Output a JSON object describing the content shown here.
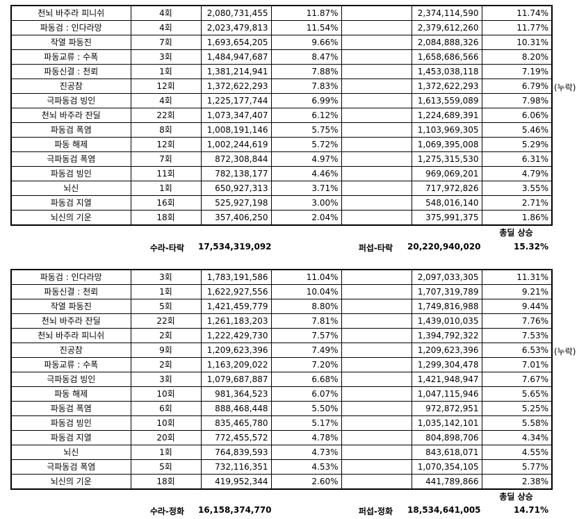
{
  "table1": {
    "rows": [
      {
        "skill": "천뇌 바주라 피니쉬",
        "hits": "4회",
        "dmg_a": "2,080,731,455",
        "pct_a": "11.87%",
        "blank": "",
        "dmg_b": "2,374,114,590",
        "pct_b": "11.74%",
        "note": ""
      },
      {
        "skill": "파동검 : 인다라망",
        "hits": "4회",
        "dmg_a": "2,023,479,813",
        "pct_a": "11.54%",
        "blank": "",
        "dmg_b": "2,379,612,260",
        "pct_b": "11.77%",
        "note": ""
      },
      {
        "skill": "작열 파동진",
        "hits": "7회",
        "dmg_a": "1,693,654,205",
        "pct_a": "9.66%",
        "blank": "",
        "dmg_b": "2,084,888,326",
        "pct_b": "10.31%",
        "note": ""
      },
      {
        "skill": "파동교류 : 수폭",
        "hits": "3회",
        "dmg_a": "1,484,947,687",
        "pct_a": "8.47%",
        "blank": "",
        "dmg_b": "1,658,686,566",
        "pct_b": "8.20%",
        "note": ""
      },
      {
        "skill": "파동신결 : 천뢰",
        "hits": "1회",
        "dmg_a": "1,381,214,941",
        "pct_a": "7.88%",
        "blank": "",
        "dmg_b": "1,453,038,118",
        "pct_b": "7.19%",
        "note": ""
      },
      {
        "skill": "진공참",
        "hits": "12회",
        "dmg_a": "1,372,622,293",
        "pct_a": "7.83%",
        "blank": "",
        "dmg_b": "1,372,622,293",
        "pct_b": "6.79%",
        "note": "(누락)"
      },
      {
        "skill": "극파동검 빙인",
        "hits": "4회",
        "dmg_a": "1,225,177,744",
        "pct_a": "6.99%",
        "blank": "",
        "dmg_b": "1,613,559,089",
        "pct_b": "7.98%",
        "note": ""
      },
      {
        "skill": "천뇌 바주라 잔딜",
        "hits": "22회",
        "dmg_a": "1,073,347,407",
        "pct_a": "6.12%",
        "blank": "",
        "dmg_b": "1,224,689,391",
        "pct_b": "6.06%",
        "note": ""
      },
      {
        "skill": "파동검 폭염",
        "hits": "8회",
        "dmg_a": "1,008,191,146",
        "pct_a": "5.75%",
        "blank": "",
        "dmg_b": "1,103,969,305",
        "pct_b": "5.46%",
        "note": ""
      },
      {
        "skill": "파동 해제",
        "hits": "12회",
        "dmg_a": "1,002,244,619",
        "pct_a": "5.72%",
        "blank": "",
        "dmg_b": "1,069,395,008",
        "pct_b": "5.29%",
        "note": ""
      },
      {
        "skill": "극파동검 폭염",
        "hits": "7회",
        "dmg_a": "872,308,844",
        "pct_a": "4.97%",
        "blank": "",
        "dmg_b": "1,275,315,530",
        "pct_b": "6.31%",
        "note": ""
      },
      {
        "skill": "파동검 빙인",
        "hits": "11회",
        "dmg_a": "782,138,177",
        "pct_a": "4.46%",
        "blank": "",
        "dmg_b": "969,069,201",
        "pct_b": "4.79%",
        "note": ""
      },
      {
        "skill": "뇌신",
        "hits": "1회",
        "dmg_a": "650,927,313",
        "pct_a": "3.71%",
        "blank": "",
        "dmg_b": "717,972,826",
        "pct_b": "3.55%",
        "note": ""
      },
      {
        "skill": "파동검 지열",
        "hits": "16회",
        "dmg_a": "525,927,198",
        "pct_a": "3.00%",
        "blank": "",
        "dmg_b": "548,016,140",
        "pct_b": "2.71%",
        "note": ""
      },
      {
        "skill": "뇌신의 기운",
        "hits": "18회",
        "dmg_a": "357,406,250",
        "pct_a": "2.04%",
        "blank": "",
        "dmg_b": "375,991,375",
        "pct_b": "1.86%",
        "note": ""
      }
    ],
    "summary": {
      "increase_header": "총딜 상승",
      "label_a": "수라-타락",
      "total_a": "17,534,319,092",
      "label_b": "퍼섭-타락",
      "total_b": "20,220,940,020",
      "increase": "15.32%"
    }
  },
  "table2": {
    "rows": [
      {
        "skill": "파동검 : 인다라망",
        "hits": "3회",
        "dmg_a": "1,783,191,586",
        "pct_a": "11.04%",
        "blank": "",
        "dmg_b": "2,097,033,305",
        "pct_b": "11.31%",
        "note": ""
      },
      {
        "skill": "파동신결 : 천뢰",
        "hits": "1회",
        "dmg_a": "1,622,927,556",
        "pct_a": "10.04%",
        "blank": "",
        "dmg_b": "1,707,319,789",
        "pct_b": "9.21%",
        "note": ""
      },
      {
        "skill": "작열 파동진",
        "hits": "5회",
        "dmg_a": "1,421,459,779",
        "pct_a": "8.80%",
        "blank": "",
        "dmg_b": "1,749,816,988",
        "pct_b": "9.44%",
        "note": ""
      },
      {
        "skill": "천뇌 바주라 잔딜",
        "hits": "22회",
        "dmg_a": "1,261,183,203",
        "pct_a": "7.81%",
        "blank": "",
        "dmg_b": "1,439,010,035",
        "pct_b": "7.76%",
        "note": ""
      },
      {
        "skill": "천뇌 바주라 피니쉬",
        "hits": "2회",
        "dmg_a": "1,222,429,730",
        "pct_a": "7.57%",
        "blank": "",
        "dmg_b": "1,394,792,322",
        "pct_b": "7.53%",
        "note": ""
      },
      {
        "skill": "진공참",
        "hits": "9회",
        "dmg_a": "1,209,623,396",
        "pct_a": "7.49%",
        "blank": "",
        "dmg_b": "1,209,623,396",
        "pct_b": "6.53%",
        "note": "(누락)"
      },
      {
        "skill": "파동교류 : 수폭",
        "hits": "2회",
        "dmg_a": "1,163,209,022",
        "pct_a": "7.20%",
        "blank": "",
        "dmg_b": "1,299,304,478",
        "pct_b": "7.01%",
        "note": ""
      },
      {
        "skill": "극파동검 빙인",
        "hits": "3회",
        "dmg_a": "1,079,687,887",
        "pct_a": "6.68%",
        "blank": "",
        "dmg_b": "1,421,948,947",
        "pct_b": "7.67%",
        "note": ""
      },
      {
        "skill": "파동 해제",
        "hits": "10회",
        "dmg_a": "981,364,523",
        "pct_a": "6.07%",
        "blank": "",
        "dmg_b": "1,047,115,946",
        "pct_b": "5.65%",
        "note": ""
      },
      {
        "skill": "파동검 폭염",
        "hits": "6회",
        "dmg_a": "888,468,448",
        "pct_a": "5.50%",
        "blank": "",
        "dmg_b": "972,872,951",
        "pct_b": "5.25%",
        "note": ""
      },
      {
        "skill": "파동검 빙인",
        "hits": "10회",
        "dmg_a": "835,465,780",
        "pct_a": "5.17%",
        "blank": "",
        "dmg_b": "1,035,142,101",
        "pct_b": "5.58%",
        "note": ""
      },
      {
        "skill": "파동검 지열",
        "hits": "20회",
        "dmg_a": "772,455,572",
        "pct_a": "4.78%",
        "blank": "",
        "dmg_b": "804,898,706",
        "pct_b": "4.34%",
        "note": ""
      },
      {
        "skill": "뇌신",
        "hits": "1회",
        "dmg_a": "764,839,593",
        "pct_a": "4.73%",
        "blank": "",
        "dmg_b": "843,618,071",
        "pct_b": "4.55%",
        "note": ""
      },
      {
        "skill": "극파동검 폭염",
        "hits": "5회",
        "dmg_a": "732,116,351",
        "pct_a": "4.53%",
        "blank": "",
        "dmg_b": "1,070,354,105",
        "pct_b": "5.77%",
        "note": ""
      },
      {
        "skill": "뇌신의 기운",
        "hits": "18회",
        "dmg_a": "419,952,344",
        "pct_a": "2.60%",
        "blank": "",
        "dmg_b": "441,789,866",
        "pct_b": "2.38%",
        "note": ""
      }
    ],
    "summary": {
      "increase_header": "총딜 상승",
      "label_a": "수라-정화",
      "total_a": "16,158,374,770",
      "label_b": "퍼섭-정화",
      "total_b": "18,534,641,005",
      "increase": "14.71%"
    }
  }
}
